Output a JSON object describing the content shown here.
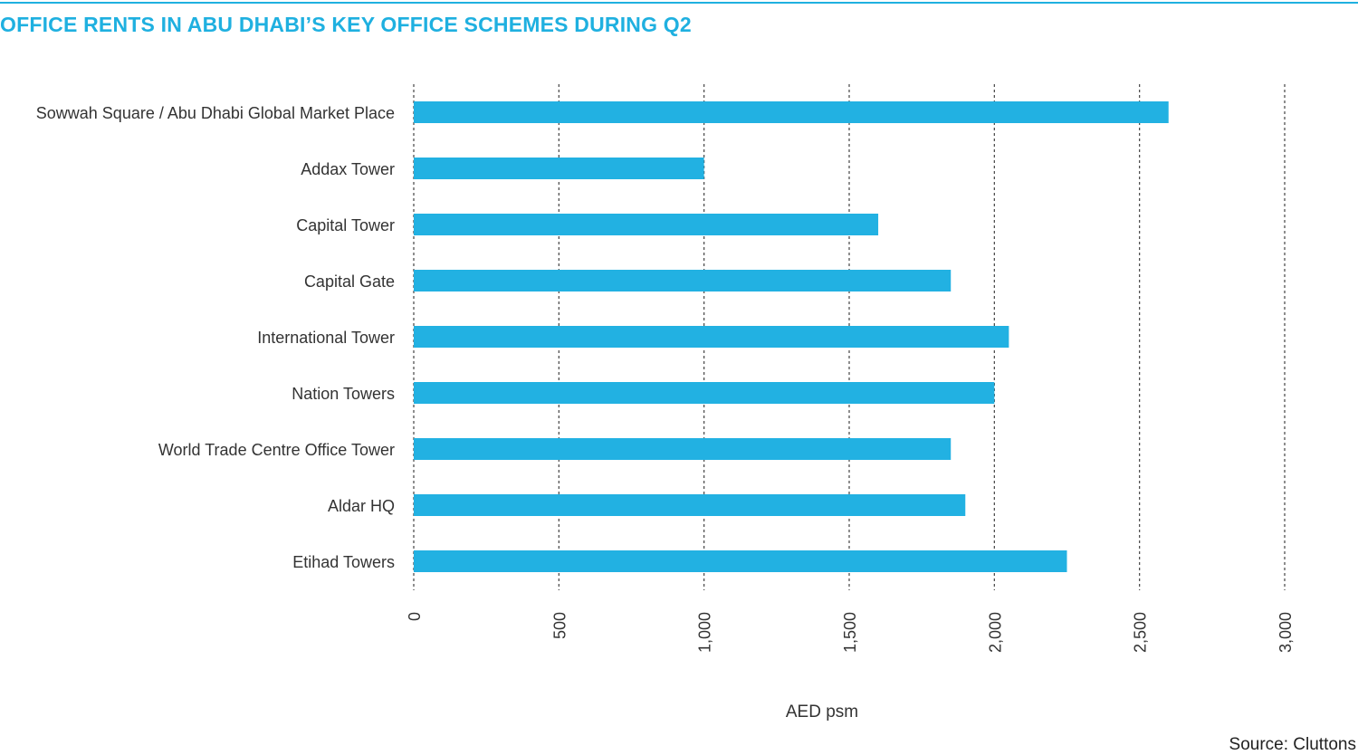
{
  "chart_data": {
    "type": "bar",
    "orientation": "horizontal",
    "title": "OFFICE RENTS IN ABU DHABI’S KEY OFFICE SCHEMES DURING Q2",
    "xlabel": "AED psm",
    "ylabel": "",
    "categories": [
      "Sowwah Square / Abu Dhabi Global Market Place",
      "Addax Tower",
      "Capital Tower",
      "Capital Gate",
      "International Tower",
      "Nation Towers",
      "World Trade Centre Office Tower",
      "Aldar HQ",
      "Etihad Towers"
    ],
    "values": [
      2600,
      1000,
      1600,
      1850,
      2050,
      2000,
      1850,
      1900,
      2250
    ],
    "xlim": [
      0,
      3000
    ],
    "xticks": [
      0,
      500,
      1000,
      1500,
      2000,
      2500,
      3000
    ],
    "xtick_labels": [
      "0",
      "500",
      "1,000",
      "1,500",
      "2,000",
      "2,500",
      "3,000"
    ],
    "grid": "vertical dashed",
    "legend": "none",
    "bar_color": "#22b1e2",
    "title_color": "#1fb0e0"
  },
  "source": "Source: Cluttons"
}
